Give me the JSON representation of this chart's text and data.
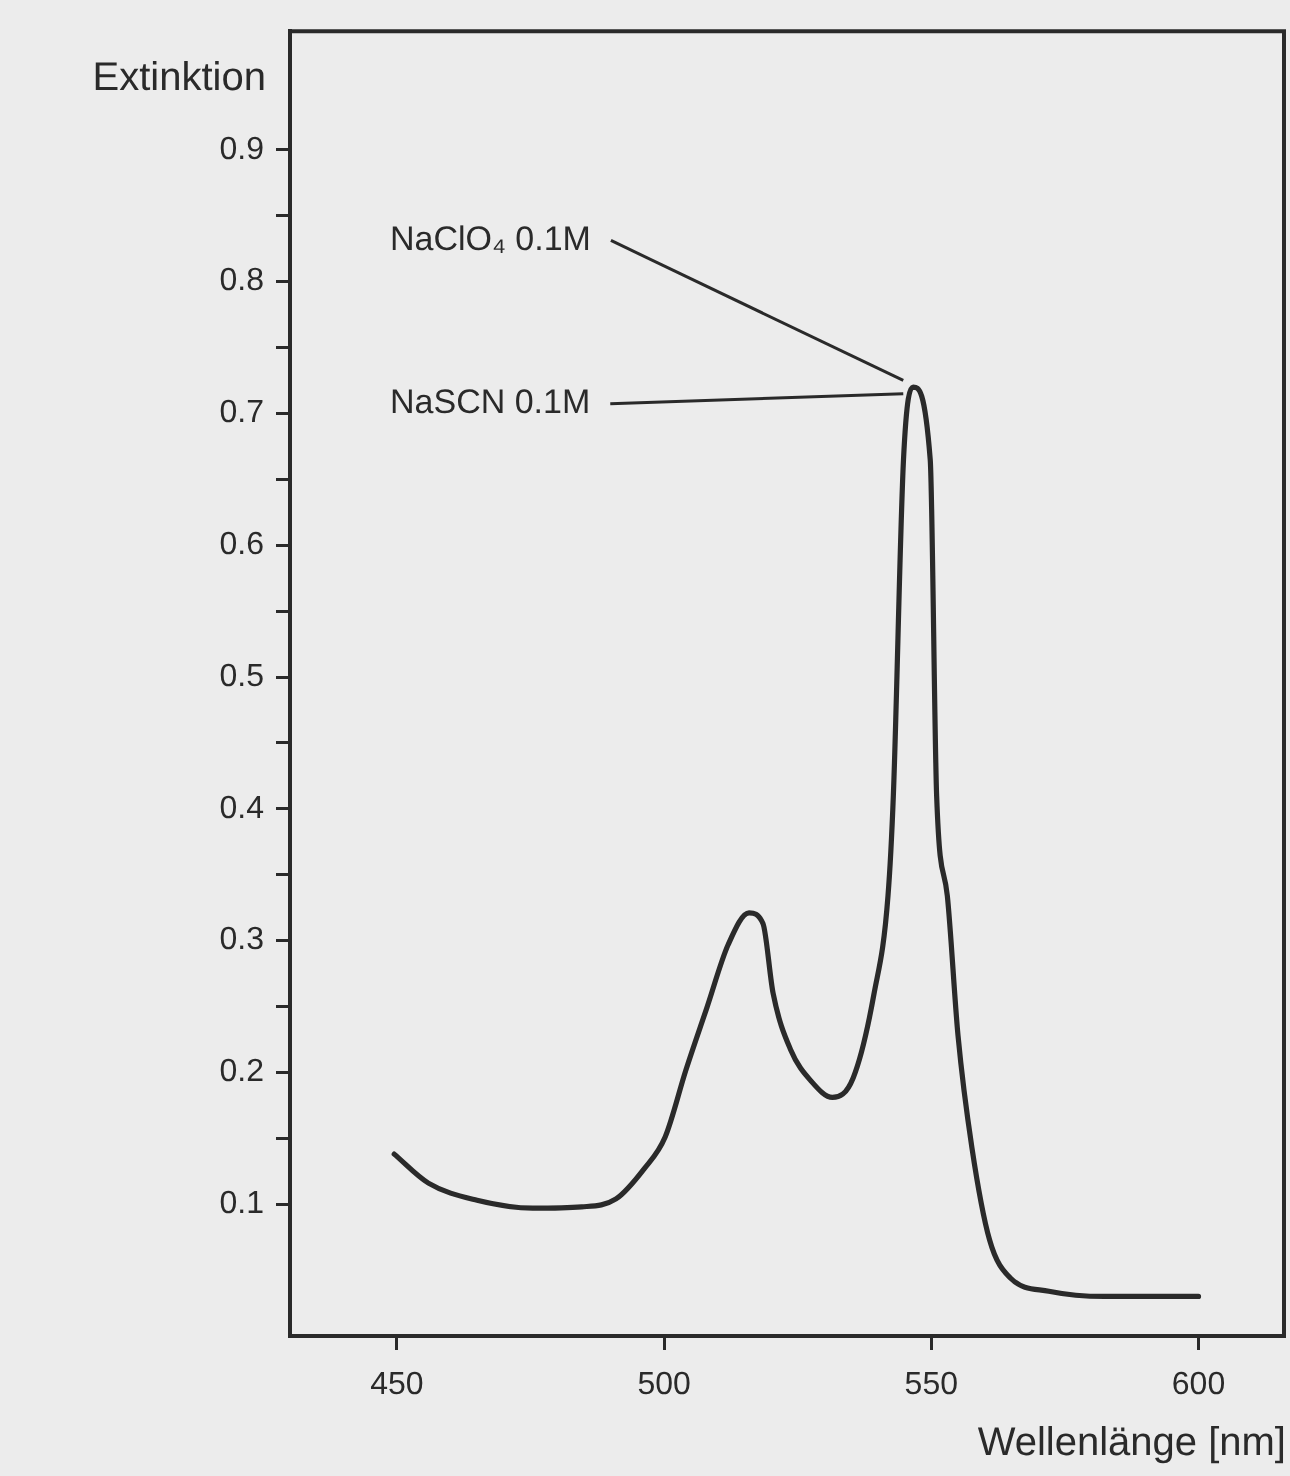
{
  "chart_data": {
    "type": "line",
    "xlabel": "Wellenlänge [nm]",
    "ylabel": "Extinktion",
    "x": [
      449.5,
      455.9,
      465,
      475.4,
      484.6,
      491,
      496.3,
      500.2,
      504.1,
      508,
      512,
      515.9,
      518.5,
      520.4,
      523.7,
      527.6,
      531.5,
      535.4,
      539.3,
      541.9,
      542.9,
      544.8,
      546.6,
      549.8,
      551,
      553,
      555,
      557.6,
      560.9,
      564.8,
      572,
      582.4,
      600
    ],
    "series": [
      {
        "color": "#2a2a2a",
        "values": [
          0.138,
          0.116,
          0.103,
          0.097,
          0.098,
          0.104,
          0.127,
          0.151,
          0.202,
          0.249,
          0.297,
          0.321,
          0.313,
          0.26,
          0.217,
          0.193,
          0.181,
          0.196,
          0.26,
          0.334,
          0.41,
          0.665,
          0.72,
          0.665,
          0.41,
          0.334,
          0.228,
          0.143,
          0.073,
          0.044,
          0.034,
          0.03,
          0.03
        ]
      }
    ],
    "xlim": [
      430,
      616
    ],
    "xticks": [
      450,
      500,
      550,
      600
    ],
    "ylim": [
      0,
      0.99
    ],
    "yticks": [
      0.1,
      {
        "value": 0.15,
        "label": null
      },
      0.2,
      {
        "value": 0.25,
        "label": null
      },
      0.3,
      {
        "value": 0.35,
        "label": null
      },
      0.4,
      {
        "value": 0.45,
        "label": null
      },
      0.5,
      {
        "value": 0.55,
        "label": null
      },
      0.6,
      {
        "value": 0.65,
        "label": null
      },
      0.7,
      {
        "value": 0.75,
        "label": null
      },
      0.8,
      {
        "value": 0.85,
        "label": null
      },
      0.9
    ],
    "annotations": [
      {
        "text": "NaClO₄ 0.1M",
        "x": 547,
        "y": 0.725
      },
      {
        "text": "NaSCN 0.1M",
        "x": 547,
        "y": 0.715
      }
    ],
    "grid": false,
    "legend": false,
    "marker": "none",
    "line_style": "solid"
  }
}
